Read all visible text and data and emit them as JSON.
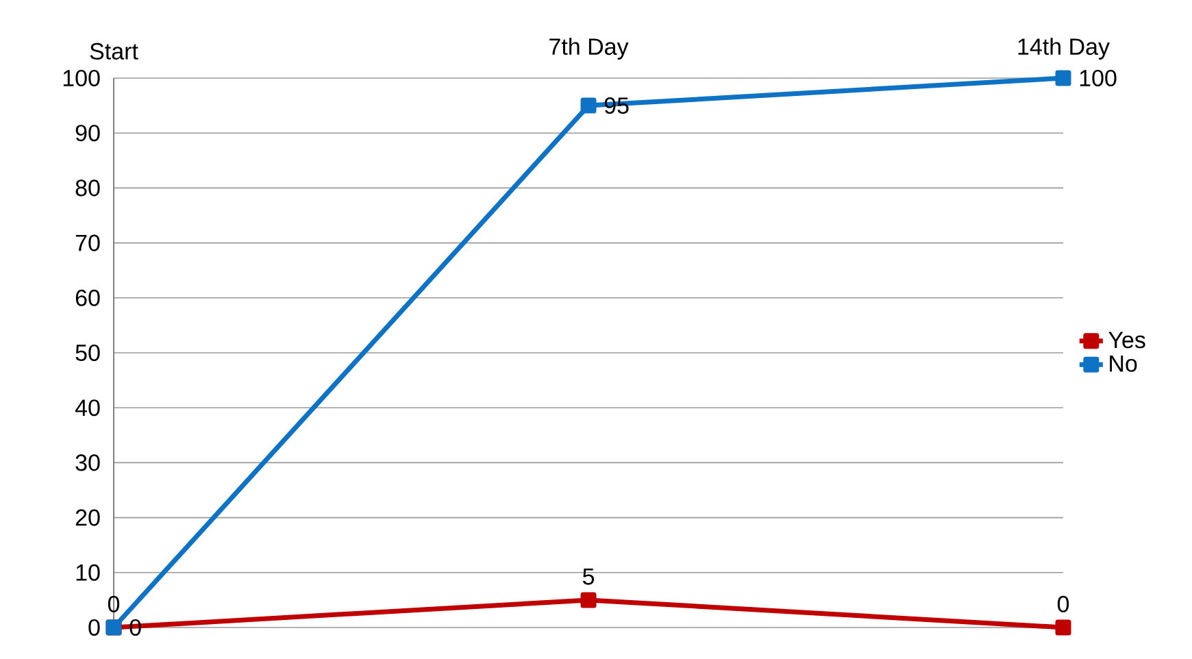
{
  "chart_data": {
    "type": "line",
    "categories": [
      "Start",
      "7th Day",
      "14th Day"
    ],
    "series": [
      {
        "name": "Yes",
        "color": "#c00000",
        "values": [
          0,
          5,
          0
        ]
      },
      {
        "name": "No",
        "color": "#0e73c4",
        "values": [
          0,
          95,
          100
        ]
      }
    ],
    "ylim": [
      0,
      100
    ],
    "yticks": [
      0,
      10,
      20,
      30,
      40,
      50,
      60,
      70,
      80,
      90,
      100
    ],
    "grid": "y",
    "legend": "right",
    "marker": "square",
    "line_style": "solid",
    "data_labels": true
  }
}
